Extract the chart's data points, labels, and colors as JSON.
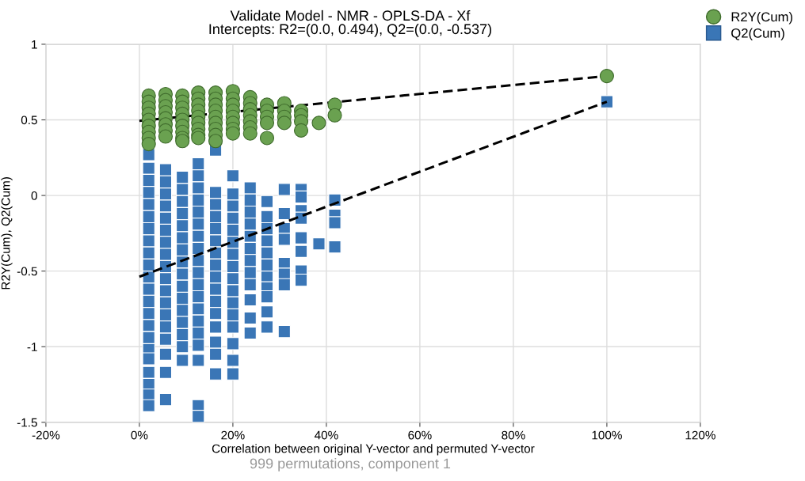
{
  "chart_data": {
    "type": "scatter",
    "title": "Validate Model - NMR - OPLS-DA - Xf",
    "subtitle": "Intercepts: R2=(0.0, 0.494), Q2=(0.0, -0.537)",
    "xlabel": "Correlation between original Y-vector and permuted Y-vector",
    "ylabel": "R2Y(Cum), Q2(Cum)",
    "annotations": [
      "999 permutations, component 1"
    ],
    "xlim": [
      -20,
      120
    ],
    "ylim": [
      -1.5,
      1
    ],
    "xticks": [
      {
        "value": -20,
        "label": "-20%"
      },
      {
        "value": 0,
        "label": "0%"
      },
      {
        "value": 20,
        "label": "20%"
      },
      {
        "value": 40,
        "label": "40%"
      },
      {
        "value": 60,
        "label": "60%"
      },
      {
        "value": 80,
        "label": "80%"
      },
      {
        "value": 100,
        "label": "100%"
      },
      {
        "value": 120,
        "label": "120%"
      }
    ],
    "yticks": [
      -1.5,
      -1,
      -0.5,
      0,
      0.5,
      1
    ],
    "grid": true,
    "legend": "top right",
    "series": [
      {
        "type": "line",
        "color": "#000000",
        "line_style": "dashed",
        "marker": "none",
        "x": [
          0,
          100
        ],
        "values": [
          0.494,
          0.79
        ]
      },
      {
        "type": "line",
        "color": "#000000",
        "line_style": "dashed",
        "marker": "none",
        "x": [
          0,
          100
        ],
        "values": [
          -0.537,
          0.62
        ]
      },
      {
        "name": "R2Y(Cum)",
        "color": "#6aa150",
        "marker": "circle",
        "x": [
          2,
          2,
          2,
          2,
          2,
          2,
          2,
          2,
          2,
          5.6,
          5.6,
          5.6,
          5.6,
          5.6,
          5.6,
          5.6,
          5.6,
          9.2,
          9.2,
          9.2,
          9.2,
          9.2,
          9.2,
          9.2,
          9.2,
          9.2,
          12.6,
          12.6,
          12.6,
          12.6,
          12.6,
          12.6,
          12.6,
          12.6,
          12.6,
          16.3,
          16.3,
          16.3,
          16.3,
          16.3,
          16.3,
          16.3,
          16.3,
          16.3,
          20,
          20,
          20,
          20,
          20,
          20,
          20,
          20,
          23.7,
          23.7,
          23.7,
          23.7,
          23.7,
          23.7,
          23.7,
          27.3,
          27.3,
          27.3,
          27.3,
          27.3,
          31,
          31,
          31,
          31,
          34.6,
          34.6,
          34.6,
          34.6,
          38.4,
          41.8,
          41.8,
          100
        ],
        "values": [
          0.66,
          0.62,
          0.58,
          0.54,
          0.5,
          0.46,
          0.42,
          0.38,
          0.34,
          0.67,
          0.63,
          0.59,
          0.55,
          0.51,
          0.47,
          0.43,
          0.39,
          0.66,
          0.62,
          0.58,
          0.54,
          0.5,
          0.46,
          0.42,
          0.38,
          0.36,
          0.68,
          0.64,
          0.6,
          0.56,
          0.52,
          0.48,
          0.44,
          0.4,
          0.38,
          0.68,
          0.64,
          0.6,
          0.56,
          0.52,
          0.48,
          0.44,
          0.4,
          0.36,
          0.69,
          0.64,
          0.6,
          0.56,
          0.52,
          0.48,
          0.44,
          0.41,
          0.65,
          0.61,
          0.57,
          0.53,
          0.49,
          0.45,
          0.41,
          0.6,
          0.56,
          0.52,
          0.48,
          0.38,
          0.61,
          0.56,
          0.52,
          0.48,
          0.56,
          0.53,
          0.49,
          0.43,
          0.48,
          0.6,
          0.53,
          0.79
        ]
      },
      {
        "name": "Q2(Cum)",
        "color": "#3a76b6",
        "marker": "square",
        "x": [
          2,
          2,
          2,
          2,
          2,
          2,
          2,
          2,
          2,
          2,
          2,
          2,
          2,
          2,
          2,
          2,
          2,
          2,
          2,
          2,
          2,
          2,
          5.6,
          5.6,
          5.6,
          5.6,
          5.6,
          5.6,
          5.6,
          5.6,
          5.6,
          5.6,
          5.6,
          5.6,
          5.6,
          5.6,
          5.6,
          5.6,
          5.6,
          5.6,
          9.2,
          9.2,
          9.2,
          9.2,
          9.2,
          9.2,
          9.2,
          9.2,
          9.2,
          9.2,
          9.2,
          9.2,
          9.2,
          9.2,
          9.2,
          9.2,
          12.6,
          12.6,
          12.6,
          12.6,
          12.6,
          12.6,
          12.6,
          12.6,
          12.6,
          12.6,
          12.6,
          12.6,
          12.6,
          12.6,
          12.6,
          12.6,
          12.6,
          12.6,
          12.6,
          16.3,
          16.3,
          16.3,
          16.3,
          16.3,
          16.3,
          16.3,
          16.3,
          16.3,
          16.3,
          16.3,
          16.3,
          16.3,
          16.3,
          16.3,
          16.3,
          20,
          20,
          20,
          20,
          20,
          20,
          20,
          20,
          20,
          20,
          20,
          20,
          20,
          20,
          20,
          20,
          23.7,
          23.7,
          23.7,
          23.7,
          23.7,
          23.7,
          23.7,
          23.7,
          23.7,
          23.7,
          23.7,
          23.7,
          27.3,
          27.3,
          27.3,
          27.3,
          27.3,
          27.3,
          27.3,
          27.3,
          27.3,
          27.3,
          27.3,
          31,
          31,
          31,
          31,
          31,
          31,
          31,
          31,
          34.6,
          34.6,
          34.6,
          34.6,
          34.6,
          34.6,
          34.6,
          34.6,
          38.4,
          41.8,
          41.8,
          41.8,
          41.8,
          100
        ],
        "values": [
          0.27,
          0.18,
          0.1,
          0.02,
          -0.06,
          -0.14,
          -0.22,
          -0.3,
          -0.38,
          -0.46,
          -0.54,
          -0.62,
          -0.7,
          -0.78,
          -0.86,
          -0.94,
          -1.02,
          -1.08,
          -1.17,
          -1.25,
          -1.32,
          -1.39,
          0.17,
          0.09,
          0.01,
          -0.07,
          -0.15,
          -0.23,
          -0.31,
          -0.39,
          -0.47,
          -0.55,
          -0.63,
          -0.71,
          -0.79,
          -0.87,
          -0.95,
          -1.05,
          -1.17,
          -1.35,
          0.12,
          0.04,
          -0.04,
          -0.12,
          -0.2,
          -0.28,
          -0.36,
          -0.44,
          -0.52,
          -0.6,
          -0.68,
          -0.76,
          -0.84,
          -0.92,
          -1.0,
          -1.09,
          0.21,
          0.13,
          0.05,
          -0.03,
          -0.11,
          -0.19,
          -0.27,
          -0.35,
          -0.43,
          -0.51,
          -0.59,
          -0.67,
          -0.75,
          -0.83,
          -0.91,
          -0.99,
          -1.09,
          -1.39,
          -1.46,
          0.3,
          0.02,
          -0.06,
          -0.14,
          -0.22,
          -0.3,
          -0.38,
          -0.46,
          -0.54,
          -0.62,
          -0.7,
          -0.78,
          -0.87,
          -0.97,
          -1.05,
          -1.18,
          0.13,
          0.01,
          -0.07,
          -0.15,
          -0.23,
          -0.31,
          -0.39,
          -0.47,
          -0.55,
          -0.63,
          -0.71,
          -0.79,
          -0.87,
          -0.98,
          -1.09,
          -1.18,
          0.05,
          -0.03,
          -0.11,
          -0.19,
          -0.27,
          -0.35,
          -0.43,
          -0.51,
          -0.59,
          -0.69,
          -0.81,
          -0.91,
          -0.04,
          -0.14,
          -0.22,
          -0.3,
          -0.38,
          -0.46,
          -0.54,
          -0.61,
          -0.67,
          -0.77,
          -0.87,
          0.04,
          -0.12,
          -0.22,
          -0.29,
          -0.45,
          -0.52,
          -0.59,
          -0.9,
          0.04,
          -0.01,
          -0.1,
          -0.15,
          -0.28,
          -0.37,
          -0.5,
          -0.56,
          -0.32,
          -0.03,
          -0.13,
          -0.18,
          -0.34,
          0.62
        ]
      }
    ]
  }
}
